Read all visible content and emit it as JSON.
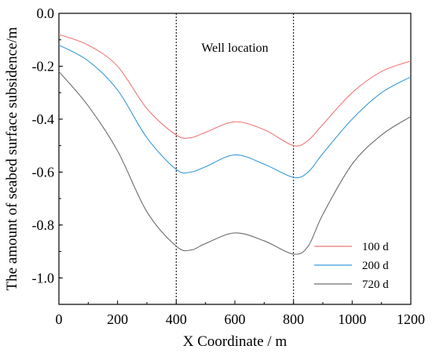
{
  "chart_data": {
    "type": "line",
    "title": "",
    "xlabel": "X Coordinate / m",
    "ylabel": "The amount of seabed surface subsidence/m",
    "xlim": [
      0,
      1200
    ],
    "ylim": [
      -1.1,
      0.0
    ],
    "x_ticks": [
      0,
      200,
      400,
      600,
      800,
      1000,
      1200
    ],
    "x_tick_labels": [
      "0",
      "200",
      "400",
      "600",
      "800",
      "1000",
      "1200"
    ],
    "y_ticks": [
      0.0,
      -0.2,
      -0.4,
      -0.6,
      -0.8,
      -1.0
    ],
    "y_tick_labels": [
      "0.0",
      "-0.2",
      "-0.4",
      "-0.6",
      "-0.8",
      "-1.0"
    ],
    "grid": false,
    "legend_position": "bottom-right",
    "annotations": [
      {
        "text": "Well location",
        "x": 600,
        "y": -0.13
      }
    ],
    "reference_lines_x": [
      400,
      800
    ],
    "x": [
      0,
      100,
      200,
      300,
      400,
      450,
      500,
      600,
      700,
      800,
      850,
      900,
      1000,
      1100,
      1200
    ],
    "series": [
      {
        "name": "100 d",
        "color": "#f07878",
        "values": [
          -0.08,
          -0.12,
          -0.2,
          -0.36,
          -0.46,
          -0.47,
          -0.45,
          -0.41,
          -0.44,
          -0.5,
          -0.48,
          -0.42,
          -0.3,
          -0.22,
          -0.18
        ]
      },
      {
        "name": "200 d",
        "color": "#3a9ad9",
        "values": [
          -0.12,
          -0.18,
          -0.29,
          -0.47,
          -0.59,
          -0.6,
          -0.58,
          -0.535,
          -0.57,
          -0.62,
          -0.6,
          -0.53,
          -0.4,
          -0.3,
          -0.24
        ]
      },
      {
        "name": "720 d",
        "color": "#6e6e6e",
        "values": [
          -0.22,
          -0.35,
          -0.52,
          -0.75,
          -0.88,
          -0.895,
          -0.87,
          -0.83,
          -0.86,
          -0.91,
          -0.88,
          -0.76,
          -0.57,
          -0.46,
          -0.39
        ]
      }
    ]
  }
}
